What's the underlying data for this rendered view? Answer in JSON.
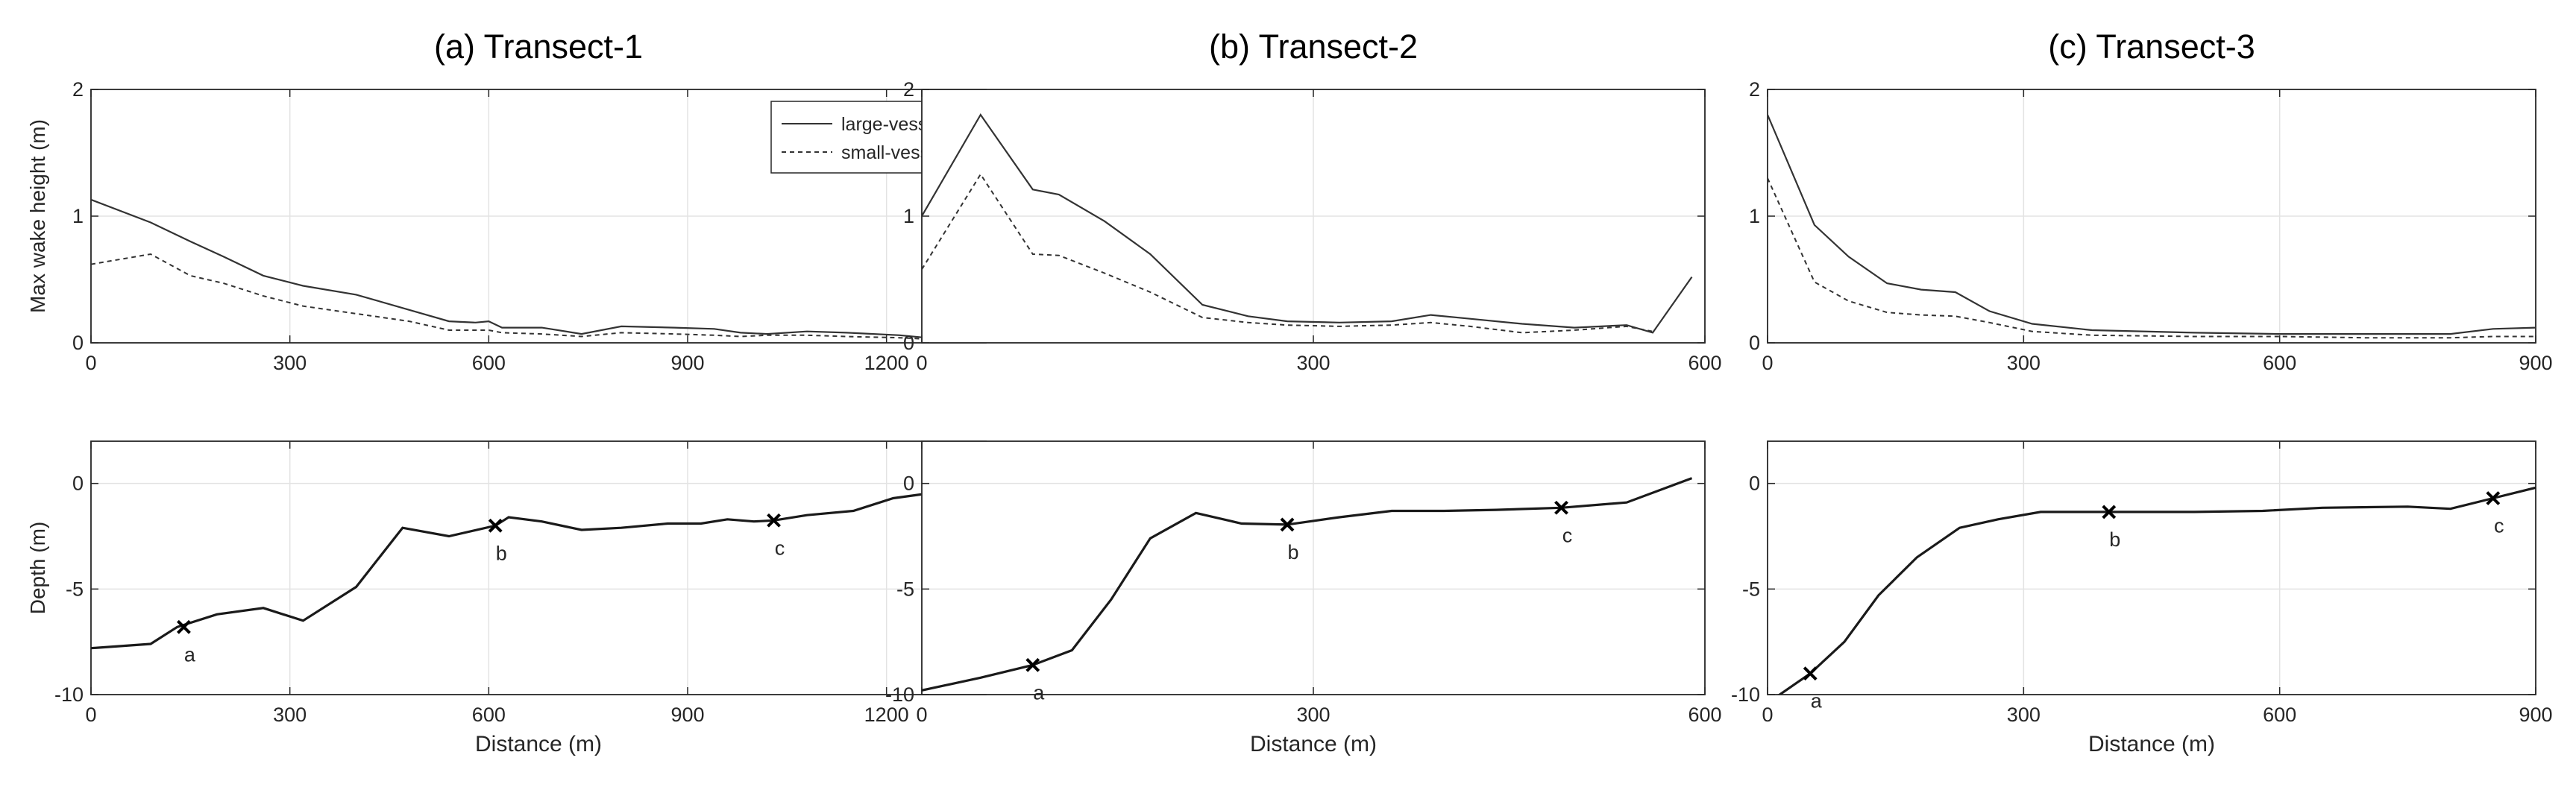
{
  "chart_data": [
    {
      "panel": "(a) Transect-1",
      "title": "(a) Transect-1",
      "wake": {
        "type": "line",
        "ylabel": "Max wake height (m)",
        "xlim": [
          0,
          1350
        ],
        "ylim": [
          0,
          2
        ],
        "xticks": [
          0,
          300,
          600,
          900,
          1200
        ],
        "yticks": [
          0,
          1,
          2
        ],
        "grid": true,
        "legend": {
          "position": "top-right",
          "entries": [
            "large-vessel",
            "small-vessel"
          ]
        },
        "series": [
          {
            "name": "large-vessel",
            "style": "solid",
            "points": [
              [
                0,
                1.13
              ],
              [
                90,
                0.95
              ],
              [
                150,
                0.8
              ],
              [
                200,
                0.68
              ],
              [
                260,
                0.53
              ],
              [
                320,
                0.45
              ],
              [
                400,
                0.38
              ],
              [
                480,
                0.26
              ],
              [
                540,
                0.17
              ],
              [
                580,
                0.16
              ],
              [
                600,
                0.17
              ],
              [
                620,
                0.12
              ],
              [
                680,
                0.12
              ],
              [
                740,
                0.07
              ],
              [
                800,
                0.13
              ],
              [
                880,
                0.12
              ],
              [
                940,
                0.11
              ],
              [
                980,
                0.08
              ],
              [
                1020,
                0.07
              ],
              [
                1080,
                0.09
              ],
              [
                1140,
                0.08
              ],
              [
                1220,
                0.06
              ],
              [
                1300,
                0.02
              ],
              [
                1350,
                0.01
              ]
            ]
          },
          {
            "name": "small-vessel",
            "style": "dashed",
            "points": [
              [
                0,
                0.62
              ],
              [
                90,
                0.7
              ],
              [
                150,
                0.53
              ],
              [
                200,
                0.47
              ],
              [
                260,
                0.37
              ],
              [
                320,
                0.29
              ],
              [
                400,
                0.23
              ],
              [
                480,
                0.17
              ],
              [
                540,
                0.1
              ],
              [
                600,
                0.1
              ],
              [
                620,
                0.08
              ],
              [
                680,
                0.07
              ],
              [
                740,
                0.05
              ],
              [
                800,
                0.08
              ],
              [
                880,
                0.07
              ],
              [
                940,
                0.06
              ],
              [
                980,
                0.05
              ],
              [
                1020,
                0.06
              ],
              [
                1080,
                0.06
              ],
              [
                1140,
                0.05
              ],
              [
                1220,
                0.04
              ],
              [
                1300,
                0.02
              ],
              [
                1350,
                0.01
              ]
            ]
          }
        ]
      },
      "depth": {
        "type": "line",
        "xlabel": "Distance (m)",
        "ylabel": "Depth (m)",
        "xlim": [
          0,
          1350
        ],
        "ylim": [
          -10,
          2
        ],
        "xticks": [
          0,
          300,
          600,
          900,
          1200
        ],
        "yticks": [
          -10,
          -5,
          0
        ],
        "grid": true,
        "profile": [
          [
            0,
            -7.8
          ],
          [
            90,
            -7.6
          ],
          [
            130,
            -6.8
          ],
          [
            190,
            -6.2
          ],
          [
            260,
            -5.9
          ],
          [
            320,
            -6.5
          ],
          [
            400,
            -4.9
          ],
          [
            470,
            -2.1
          ],
          [
            540,
            -2.5
          ],
          [
            610,
            -2.0
          ],
          [
            630,
            -1.6
          ],
          [
            680,
            -1.8
          ],
          [
            740,
            -2.2
          ],
          [
            800,
            -2.1
          ],
          [
            870,
            -1.9
          ],
          [
            920,
            -1.9
          ],
          [
            960,
            -1.7
          ],
          [
            1000,
            -1.8
          ],
          [
            1030,
            -1.75
          ],
          [
            1080,
            -1.5
          ],
          [
            1150,
            -1.3
          ],
          [
            1210,
            -0.7
          ],
          [
            1280,
            -0.4
          ],
          [
            1350,
            -0.2
          ]
        ],
        "markers": [
          {
            "label": "a",
            "x": 140,
            "y": -6.8
          },
          {
            "label": "b",
            "x": 610,
            "y": -2.0
          },
          {
            "label": "c",
            "x": 1030,
            "y": -1.75
          }
        ]
      }
    },
    {
      "panel": "(b) Transect-2",
      "title": "(b) Transect-2",
      "wake": {
        "type": "line",
        "ylabel": "",
        "xlim": [
          0,
          600
        ],
        "ylim": [
          0,
          2
        ],
        "xticks": [
          0,
          300,
          600
        ],
        "yticks": [
          0,
          1,
          2
        ],
        "grid": true,
        "series": [
          {
            "name": "large-vessel",
            "style": "solid",
            "points": [
              [
                0,
                1.0
              ],
              [
                45,
                1.8
              ],
              [
                85,
                1.21
              ],
              [
                105,
                1.17
              ],
              [
                140,
                0.96
              ],
              [
                175,
                0.7
              ],
              [
                215,
                0.3
              ],
              [
                250,
                0.21
              ],
              [
                280,
                0.17
              ],
              [
                320,
                0.16
              ],
              [
                360,
                0.17
              ],
              [
                390,
                0.22
              ],
              [
                420,
                0.19
              ],
              [
                460,
                0.15
              ],
              [
                500,
                0.12
              ],
              [
                540,
                0.14
              ],
              [
                560,
                0.08
              ],
              [
                590,
                0.52
              ]
            ]
          },
          {
            "name": "small-vessel",
            "style": "dashed",
            "points": [
              [
                0,
                0.58
              ],
              [
                45,
                1.33
              ],
              [
                85,
                0.7
              ],
              [
                105,
                0.69
              ],
              [
                140,
                0.55
              ],
              [
                175,
                0.4
              ],
              [
                215,
                0.2
              ],
              [
                250,
                0.16
              ],
              [
                280,
                0.14
              ],
              [
                320,
                0.13
              ],
              [
                360,
                0.14
              ],
              [
                390,
                0.16
              ],
              [
                420,
                0.13
              ],
              [
                460,
                0.08
              ],
              [
                500,
                0.1
              ],
              [
                540,
                0.13
              ],
              [
                560,
                0.09
              ]
            ]
          }
        ]
      },
      "depth": {
        "type": "line",
        "xlabel": "Distance (m)",
        "ylabel": "",
        "xlim": [
          0,
          600
        ],
        "ylim": [
          -10,
          2
        ],
        "xticks": [
          0,
          300,
          600
        ],
        "yticks": [
          -10,
          -5,
          0
        ],
        "grid": true,
        "profile": [
          [
            0,
            -9.8
          ],
          [
            45,
            -9.2
          ],
          [
            85,
            -8.6
          ],
          [
            115,
            -7.9
          ],
          [
            145,
            -5.5
          ],
          [
            175,
            -2.6
          ],
          [
            210,
            -1.4
          ],
          [
            245,
            -1.9
          ],
          [
            280,
            -1.95
          ],
          [
            320,
            -1.6
          ],
          [
            360,
            -1.3
          ],
          [
            400,
            -1.3
          ],
          [
            440,
            -1.25
          ],
          [
            490,
            -1.15
          ],
          [
            540,
            -0.9
          ],
          [
            590,
            0.25
          ]
        ],
        "markers": [
          {
            "label": "a",
            "x": 85,
            "y": -8.6
          },
          {
            "label": "b",
            "x": 280,
            "y": -1.95
          },
          {
            "label": "c",
            "x": 490,
            "y": -1.15
          }
        ]
      }
    },
    {
      "panel": "(c) Transect-3",
      "title": "(c) Transect-3",
      "wake": {
        "type": "line",
        "ylabel": "",
        "xlim": [
          0,
          900
        ],
        "ylim": [
          0,
          2
        ],
        "xticks": [
          0,
          300,
          600,
          900
        ],
        "yticks": [
          0,
          1,
          2
        ],
        "grid": true,
        "series": [
          {
            "name": "large-vessel",
            "style": "solid",
            "points": [
              [
                0,
                1.8
              ],
              [
                55,
                0.93
              ],
              [
                95,
                0.68
              ],
              [
                140,
                0.47
              ],
              [
                180,
                0.42
              ],
              [
                220,
                0.4
              ],
              [
                260,
                0.25
              ],
              [
                310,
                0.15
              ],
              [
                380,
                0.1
              ],
              [
                500,
                0.08
              ],
              [
                600,
                0.07
              ],
              [
                700,
                0.07
              ],
              [
                800,
                0.07
              ],
              [
                850,
                0.11
              ],
              [
                900,
                0.12
              ]
            ]
          },
          {
            "name": "small-vessel",
            "style": "dashed",
            "points": [
              [
                0,
                1.3
              ],
              [
                55,
                0.48
              ],
              [
                95,
                0.33
              ],
              [
                140,
                0.24
              ],
              [
                180,
                0.22
              ],
              [
                220,
                0.21
              ],
              [
                260,
                0.16
              ],
              [
                310,
                0.09
              ],
              [
                380,
                0.06
              ],
              [
                500,
                0.05
              ],
              [
                600,
                0.05
              ],
              [
                700,
                0.04
              ],
              [
                800,
                0.04
              ],
              [
                850,
                0.05
              ],
              [
                900,
                0.05
              ]
            ]
          }
        ]
      },
      "depth": {
        "type": "line",
        "xlabel": "Distance (m)",
        "ylabel": "",
        "xlim": [
          0,
          900
        ],
        "ylim": [
          -10,
          2
        ],
        "xticks": [
          0,
          300,
          600,
          900
        ],
        "yticks": [
          -10,
          -5,
          0
        ],
        "grid": true,
        "profile": [
          [
            0,
            -10.4
          ],
          [
            50,
            -9.0
          ],
          [
            90,
            -7.5
          ],
          [
            130,
            -5.3
          ],
          [
            175,
            -3.5
          ],
          [
            225,
            -2.1
          ],
          [
            270,
            -1.7
          ],
          [
            320,
            -1.35
          ],
          [
            400,
            -1.35
          ],
          [
            500,
            -1.35
          ],
          [
            580,
            -1.3
          ],
          [
            650,
            -1.15
          ],
          [
            750,
            -1.1
          ],
          [
            800,
            -1.2
          ],
          [
            850,
            -0.7
          ],
          [
            900,
            -0.2
          ]
        ],
        "markers": [
          {
            "label": "a",
            "x": 50,
            "y": -9.0
          },
          {
            "label": "b",
            "x": 400,
            "y": -1.35
          },
          {
            "label": "c",
            "x": 850,
            "y": -0.7
          }
        ]
      }
    }
  ]
}
